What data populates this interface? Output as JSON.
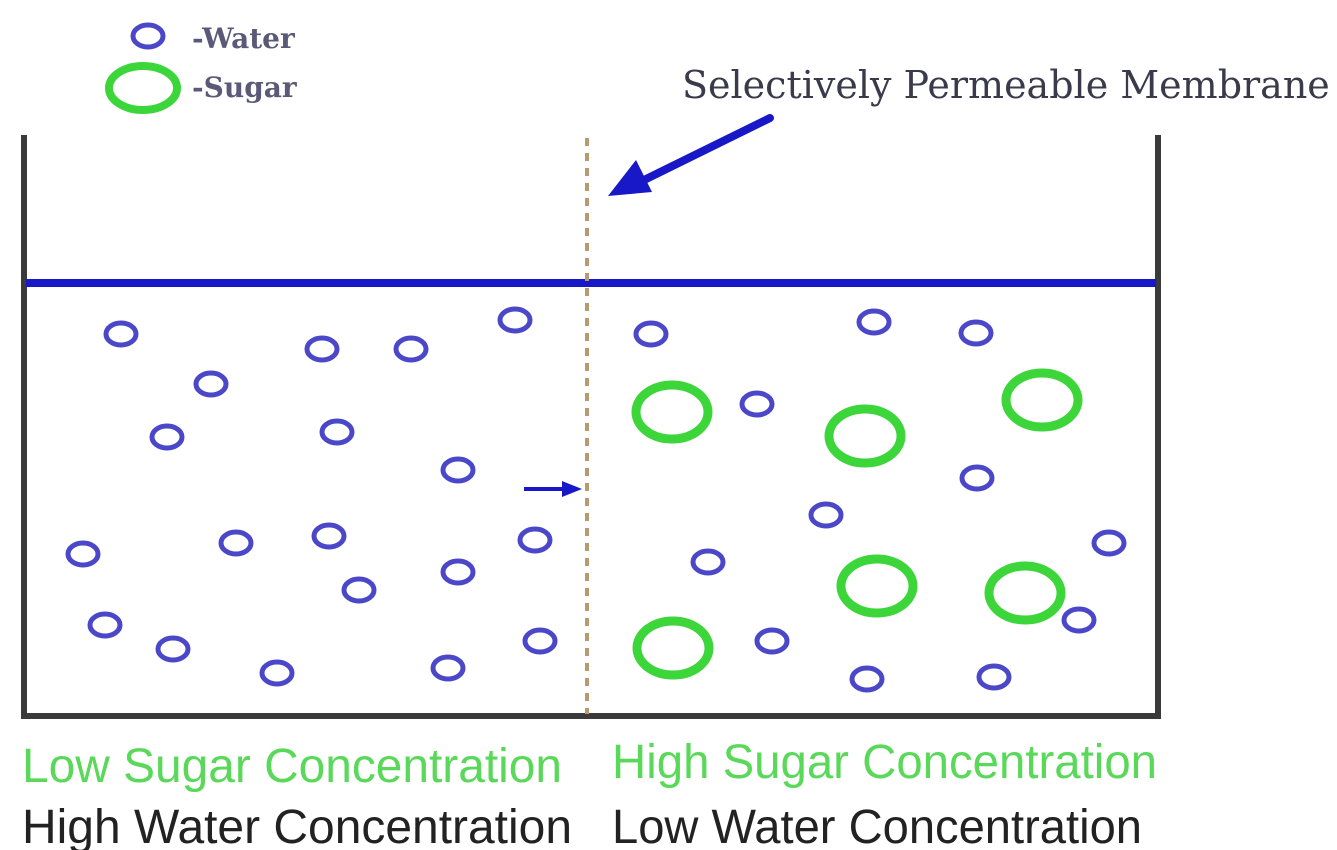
{
  "legend": {
    "water_label": "-Water",
    "sugar_label": "-Sugar"
  },
  "membrane_label": "Selectively Permeable Membrane",
  "left_side": {
    "sugar_caption": "Low Sugar Concentration",
    "water_caption": "High Water Concentration"
  },
  "right_side": {
    "sugar_caption": "High Sugar Concentration",
    "water_caption": "Low Water Concentration"
  },
  "colors": {
    "water": "#4a47c8",
    "sugar": "#3dd63a",
    "water_surface": "#1818c8",
    "arrow": "#1818c8",
    "membrane": "#b89a70",
    "container": "#3a3a3a",
    "caption_sugar": "#5ad85a",
    "caption_water": "#222222"
  }
}
